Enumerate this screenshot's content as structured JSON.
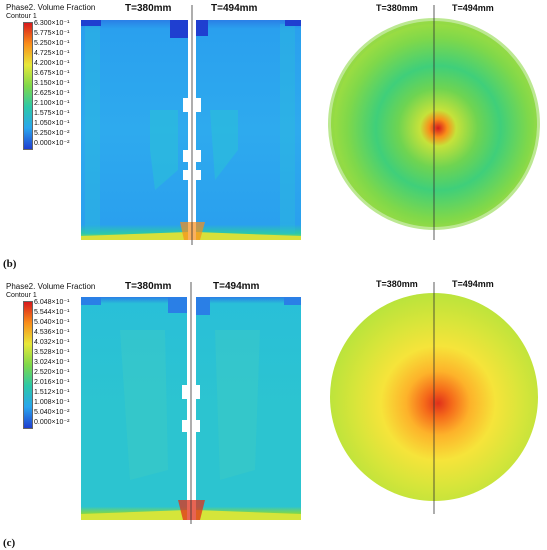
{
  "panels": [
    {
      "legend_title": "Phase2. Volume Fraction",
      "legend_sub": "Contour 1",
      "legend_values": [
        "6.300×10⁻¹",
        "5.775×10⁻¹",
        "5.250×10⁻¹",
        "4.725×10⁻¹",
        "4.200×10⁻¹",
        "3.675×10⁻¹",
        "3.150×10⁻¹",
        "2.625×10⁻¹",
        "2.100×10⁻¹",
        "1.575×10⁻¹",
        "1.050×10⁻¹",
        "5.250×10⁻²",
        "0.000×10⁻²"
      ],
      "left_label": "T=380mm",
      "right_label": "T=494mm",
      "circle_left_label": "T=380mm",
      "circle_right_label": "T=494mm",
      "sub_label": "(b)"
    },
    {
      "legend_title": "Phase2. Volume Fraction",
      "legend_sub": "Contour 1",
      "legend_values": [
        "6.048×10⁻¹",
        "5.544×10⁻¹",
        "5.040×10⁻¹",
        "4.536×10⁻¹",
        "4.032×10⁻¹",
        "3.528×10⁻¹",
        "3.024×10⁻¹",
        "2.520×10⁻¹",
        "2.016×10⁻¹",
        "1.512×10⁻¹",
        "1.008×10⁻¹",
        "5.040×10⁻²",
        "0.000×10⁻²"
      ],
      "left_label": "T=380mm",
      "right_label": "T=494mm",
      "circle_left_label": "T=380mm",
      "circle_right_label": "T=494mm",
      "sub_label": "(c)"
    }
  ],
  "colors": {
    "scale": [
      "#d7191c",
      "#f04a1a",
      "#f98e1a",
      "#fdc032",
      "#e8e83a",
      "#b6e33c",
      "#7fd84a",
      "#44cf72",
      "#2cc8a8",
      "#29bfd8",
      "#2aa6ee",
      "#2a7fe6",
      "#1f3fd0"
    ]
  }
}
